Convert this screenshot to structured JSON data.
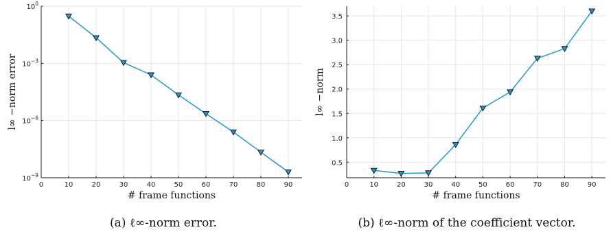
{
  "figure": {
    "captions": [
      "(a) ℓ∞-norm error.",
      "(b) ℓ∞-norm of the coefficient vector."
    ]
  },
  "colors": {
    "series": "#1f98d4",
    "marker_fill": "#2a93c9",
    "marker_edge": "#111111"
  },
  "chart_data": [
    {
      "type": "line",
      "marker": "triangle-down",
      "xlabel": "# frame functions",
      "ylabel": "l∞ −norm error",
      "xlim": [
        0,
        95
      ],
      "ylim": [
        1e-09,
        1
      ],
      "yscale": "log",
      "grid": true,
      "legend": "none",
      "xticks": [
        0,
        10,
        20,
        30,
        40,
        50,
        60,
        70,
        80,
        90
      ],
      "xtick_labels": [
        "0",
        "10",
        "20",
        "30",
        "40",
        "50",
        "60",
        "70",
        "80",
        "90"
      ],
      "yticks": [
        1e-09,
        1e-06,
        0.001,
        1
      ],
      "ytick_labels": [
        {
          "base": "10",
          "exp": "−9"
        },
        {
          "base": "10",
          "exp": "−6"
        },
        {
          "base": "10",
          "exp": "−3"
        },
        {
          "base": "10",
          "exp": "0"
        }
      ],
      "x": [
        10,
        20,
        30,
        40,
        50,
        60,
        70,
        80,
        90
      ],
      "y": [
        0.3,
        0.022,
        0.0011,
        0.00025,
        2.2e-05,
        2.3e-06,
        2.5e-07,
        2.2e-08,
        2e-09
      ]
    },
    {
      "type": "line",
      "marker": "triangle-down",
      "xlabel": "# frame functions",
      "ylabel": "l∞ −norm",
      "xlim": [
        0,
        95
      ],
      "ylim": [
        0.18,
        3.7
      ],
      "yscale": "linear",
      "grid": true,
      "legend": "none",
      "xticks": [
        0,
        10,
        20,
        30,
        40,
        50,
        60,
        70,
        80,
        90
      ],
      "xtick_labels": [
        "0",
        "10",
        "20",
        "30",
        "40",
        "50",
        "60",
        "70",
        "80",
        "90"
      ],
      "yticks": [
        0.5,
        1.0,
        1.5,
        2.0,
        2.5,
        3.0,
        3.5
      ],
      "ytick_labels": [
        "0.5",
        "1.0",
        "1.5",
        "2.0",
        "2.5",
        "3.0",
        "3.5"
      ],
      "x": [
        10,
        20,
        30,
        40,
        50,
        60,
        70,
        80,
        90
      ],
      "y": [
        0.33,
        0.27,
        0.28,
        0.86,
        1.61,
        1.94,
        2.63,
        2.83,
        3.6
      ]
    }
  ]
}
